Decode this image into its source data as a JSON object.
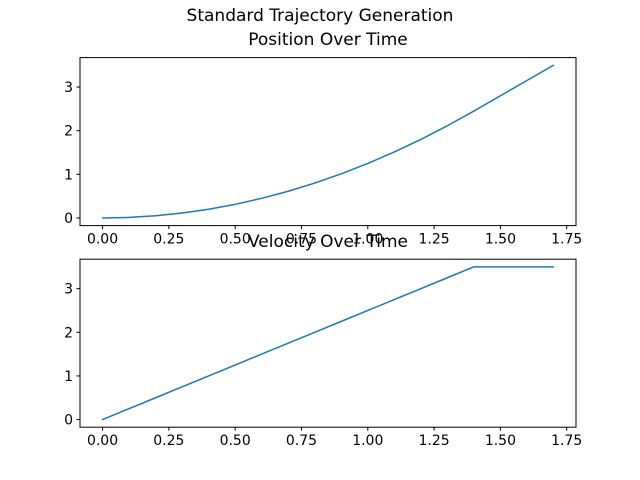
{
  "figure": {
    "suptitle": "Standard Trajectory Generation",
    "background_color": "#ffffff",
    "text_color": "#000000",
    "spine_color": "#000000"
  },
  "chart_data": [
    {
      "type": "line",
      "title": "Position Over Time",
      "xlabel": "",
      "ylabel": "",
      "grid": false,
      "legend": "none",
      "line_color": "#1f77b4",
      "xlim": [
        -0.085,
        1.785
      ],
      "ylim": [
        -0.175,
        3.675
      ],
      "xticks": [
        0.0,
        0.25,
        0.5,
        0.75,
        1.0,
        1.25,
        1.5,
        1.75
      ],
      "xtick_labels": [
        "0.00",
        "0.25",
        "0.50",
        "0.75",
        "1.00",
        "1.25",
        "1.50",
        "1.75"
      ],
      "yticks": [
        0,
        1,
        2,
        3
      ],
      "ytick_labels": [
        "0",
        "1",
        "2",
        "3"
      ],
      "x": [
        0.0,
        0.1,
        0.2,
        0.3,
        0.4,
        0.5,
        0.6,
        0.7,
        0.8,
        0.9,
        1.0,
        1.1,
        1.2,
        1.3,
        1.4,
        1.5,
        1.6,
        1.7
      ],
      "series": [
        {
          "name": "position",
          "values": [
            0.0,
            0.0125,
            0.05,
            0.1125,
            0.2,
            0.3125,
            0.45,
            0.6125,
            0.8,
            1.0125,
            1.25,
            1.5125,
            1.8,
            2.1125,
            2.45,
            2.8,
            3.15,
            3.5
          ]
        }
      ]
    },
    {
      "type": "line",
      "title": "Velocity Over Time",
      "xlabel": "",
      "ylabel": "",
      "grid": false,
      "legend": "none",
      "line_color": "#1f77b4",
      "xlim": [
        -0.085,
        1.785
      ],
      "ylim": [
        -0.175,
        3.675
      ],
      "xticks": [
        0.0,
        0.25,
        0.5,
        0.75,
        1.0,
        1.25,
        1.5,
        1.75
      ],
      "xtick_labels": [
        "0.00",
        "0.25",
        "0.50",
        "0.75",
        "1.00",
        "1.25",
        "1.50",
        "1.75"
      ],
      "yticks": [
        0,
        1,
        2,
        3
      ],
      "ytick_labels": [
        "0",
        "1",
        "2",
        "3"
      ],
      "x": [
        0.0,
        0.1,
        0.2,
        0.3,
        0.4,
        0.5,
        0.6,
        0.7,
        0.8,
        0.9,
        1.0,
        1.1,
        1.2,
        1.3,
        1.4,
        1.5,
        1.6,
        1.7
      ],
      "series": [
        {
          "name": "velocity",
          "values": [
            0.0,
            0.25,
            0.5,
            0.75,
            1.0,
            1.25,
            1.5,
            1.75,
            2.0,
            2.25,
            2.5,
            2.75,
            3.0,
            3.25,
            3.5,
            3.5,
            3.5,
            3.5
          ]
        }
      ]
    }
  ]
}
